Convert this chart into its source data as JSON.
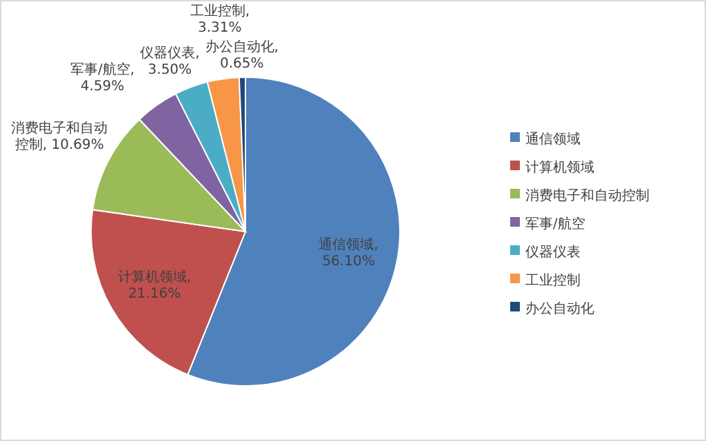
{
  "chart_data": {
    "type": "pie",
    "categories": [
      "通信领域",
      "计算机领域",
      "消费电子和自动控制",
      "军事/航空",
      "仪器仪表",
      "工业控制",
      "办公自动化"
    ],
    "values": [
      56.1,
      21.16,
      10.69,
      4.59,
      3.5,
      3.31,
      0.65
    ],
    "value_labels": [
      "通信领域, 56.10%",
      "计算机领域, 21.16%",
      "消费电子和自动控制, 10.69%",
      "军事/航空, 4.59%",
      "仪器仪表, 3.50%",
      "工业控制, 3.31%",
      "办公自动化, 0.65%"
    ],
    "colors": [
      "#4f81bd",
      "#c0504d",
      "#9bbb59",
      "#8064a2",
      "#4bacc6",
      "#f79646",
      "#1f497d"
    ],
    "legend": "right"
  }
}
